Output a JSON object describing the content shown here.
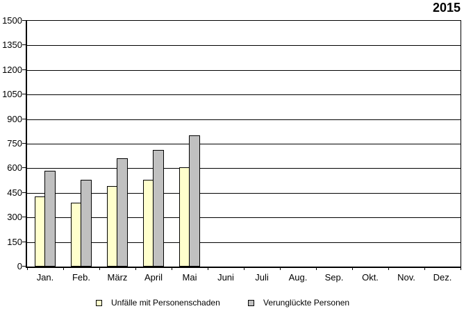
{
  "header": {
    "year_label": "2015"
  },
  "chart_data": {
    "type": "bar",
    "title": "2015",
    "categories": [
      "Jan.",
      "Feb.",
      "März",
      "April",
      "Mai",
      "Juni",
      "Juli",
      "Aug.",
      "Sep.",
      "Okt.",
      "Nov.",
      "Dez."
    ],
    "series": [
      {
        "name": "Unfälle mit Personenschaden",
        "key": "unfaelle-mit-personenschaden",
        "color": "#FFFFCC",
        "values": [
          430,
          390,
          490,
          530,
          605,
          null,
          null,
          null,
          null,
          null,
          null,
          null
        ]
      },
      {
        "name": "Verunglückte Personen",
        "key": "verunglückte-personen",
        "color": "#C0C0C0",
        "values": [
          585,
          530,
          660,
          710,
          800,
          null,
          null,
          null,
          null,
          null,
          null,
          null
        ]
      }
    ],
    "ylim": [
      0,
      1500
    ],
    "ytick_step": 150,
    "yticks": [
      0,
      150,
      300,
      450,
      600,
      750,
      900,
      1050,
      1200,
      1350,
      1500
    ],
    "grid": "horizontal",
    "legend_position": "bottom",
    "plot_background": "#FFFFFF",
    "axis_color": "#000000",
    "bar_border_color": "#000000"
  }
}
